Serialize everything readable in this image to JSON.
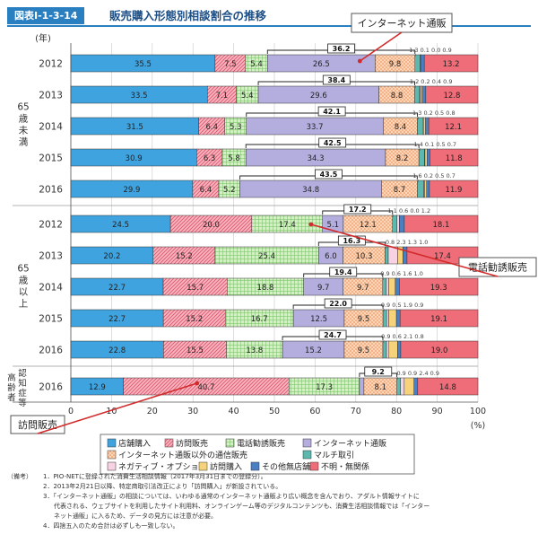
{
  "header": {
    "badge": "図表Ⅰ-1-3-14",
    "title": "販売購入形態別相談割合の推移"
  },
  "chart_data": {
    "type": "bar",
    "orientation": "horizontal",
    "stacked": true,
    "unit_label": "(年)",
    "x_unit": "(%)",
    "xlim": [
      0,
      100
    ],
    "x_ticks": [
      0,
      10,
      20,
      30,
      40,
      50,
      60,
      70,
      80,
      90,
      100
    ],
    "grid": true,
    "groups": [
      {
        "label": "65歳未満",
        "rows": [
          {
            "year": "2012",
            "values": [
              35.5,
              7.5,
              5.4,
              26.5,
              9.8,
              1.3,
              0.1,
              0.0,
              0.9,
              13.2
            ],
            "bracket": "36.2"
          },
          {
            "year": "2013",
            "values": [
              33.5,
              7.1,
              5.4,
              29.6,
              8.8,
              1.2,
              0.2,
              0.4,
              0.9,
              12.8
            ],
            "bracket": "38.4"
          },
          {
            "year": "2014",
            "values": [
              31.5,
              6.4,
              5.3,
              33.7,
              8.4,
              1.3,
              0.2,
              0.5,
              0.8,
              12.1
            ],
            "bracket": "42.1"
          },
          {
            "year": "2015",
            "values": [
              30.9,
              6.3,
              5.8,
              34.3,
              8.2,
              1.4,
              0.1,
              0.5,
              0.7,
              11.8
            ],
            "bracket": "42.5"
          },
          {
            "year": "2016",
            "values": [
              29.9,
              6.4,
              5.2,
              34.8,
              8.7,
              1.6,
              0.2,
              0.5,
              0.7,
              11.9
            ],
            "bracket": "43.5"
          }
        ]
      },
      {
        "label": "65歳以上",
        "rows": [
          {
            "year": "2012",
            "values": [
              24.5,
              20.0,
              17.4,
              5.1,
              12.1,
              1.1,
              0.6,
              0.0,
              1.2,
              18.1
            ],
            "bracket": "17.2"
          },
          {
            "year": "2013",
            "values": [
              20.2,
              15.2,
              25.4,
              6.0,
              10.3,
              0.8,
              2.3,
              1.3,
              1.0,
              17.4
            ],
            "bracket": "16.3"
          },
          {
            "year": "2014",
            "values": [
              22.7,
              15.7,
              18.8,
              9.7,
              9.7,
              0.9,
              0.6,
              1.6,
              1.0,
              19.3
            ],
            "bracket": "19.4"
          },
          {
            "year": "2015",
            "values": [
              22.7,
              15.2,
              16.7,
              12.5,
              9.5,
              0.9,
              0.5,
              1.9,
              0.9,
              19.1
            ],
            "bracket": "22.0"
          },
          {
            "year": "2016",
            "values": [
              22.8,
              15.5,
              13.8,
              15.2,
              9.5,
              0.9,
              0.6,
              2.1,
              0.8,
              19.0
            ],
            "bracket": "24.7"
          }
        ]
      },
      {
        "label": "認知症等高齢者",
        "rows": [
          {
            "year": "2016",
            "values": [
              12.9,
              40.7,
              17.3,
              1.1,
              8.1,
              0.9,
              0.9,
              2.4,
              0.9,
              14.8
            ],
            "bracket": "9.2"
          }
        ]
      }
    ],
    "series": [
      {
        "name": "店舗購入",
        "color": "#3fa3e0",
        "pattern": "solid"
      },
      {
        "name": "訪問販売",
        "color": "#f28a9a",
        "pattern": "hatch"
      },
      {
        "name": "電話勧誘販売",
        "color": "#9fd28f",
        "pattern": "check"
      },
      {
        "name": "インターネット通販",
        "color": "#b3aede",
        "pattern": "solid"
      },
      {
        "name": "インターネット通販以外の通信販売",
        "color": "#f5a77c",
        "pattern": "dots"
      },
      {
        "name": "マルチ取引",
        "color": "#5db8b0",
        "pattern": "solid"
      },
      {
        "name": "ネガティブ・オプション",
        "color": "#f6d2e2",
        "pattern": "solid"
      },
      {
        "name": "訪問購入",
        "color": "#f6d27a",
        "pattern": "solid"
      },
      {
        "name": "その他無店舗",
        "color": "#4b7fc4",
        "pattern": "solid"
      },
      {
        "name": "不明・無関係",
        "color": "#ee6d78",
        "pattern": "solid"
      }
    ],
    "annotations": [
      {
        "text": "インターネット通販",
        "points_to": "65歳未満 2012 インターネット通販"
      },
      {
        "text": "電話勧誘販売",
        "points_to": "65歳以上 2012 電話勧誘販売"
      },
      {
        "text": "訪問販売",
        "points_to": "認知症等高齢者 2016 訪問販売"
      }
    ]
  },
  "notes": {
    "head": "（備考）",
    "items": [
      "1．PIO-NETに登録された消費生活相談情報（2017年3月31日までの登録分）。",
      "2．2013年2月21日以降、特定商取引法改正により「訪問購入」が新設されている。",
      "3．「インターネット通販」の相談については、いわゆる通常のインターネット通販より広い概念を含んでおり、アダルト情報サイトに",
      "代表される、ウェブサイトを利用したサイト利用料、オンラインゲーム等のデジタルコンテンツも、消費生活相談情報では「インター",
      "ネット通販」に入るため、データの見方には注意が必要。",
      "4．四捨五入のため合計は必ずしも一致しない。"
    ]
  }
}
